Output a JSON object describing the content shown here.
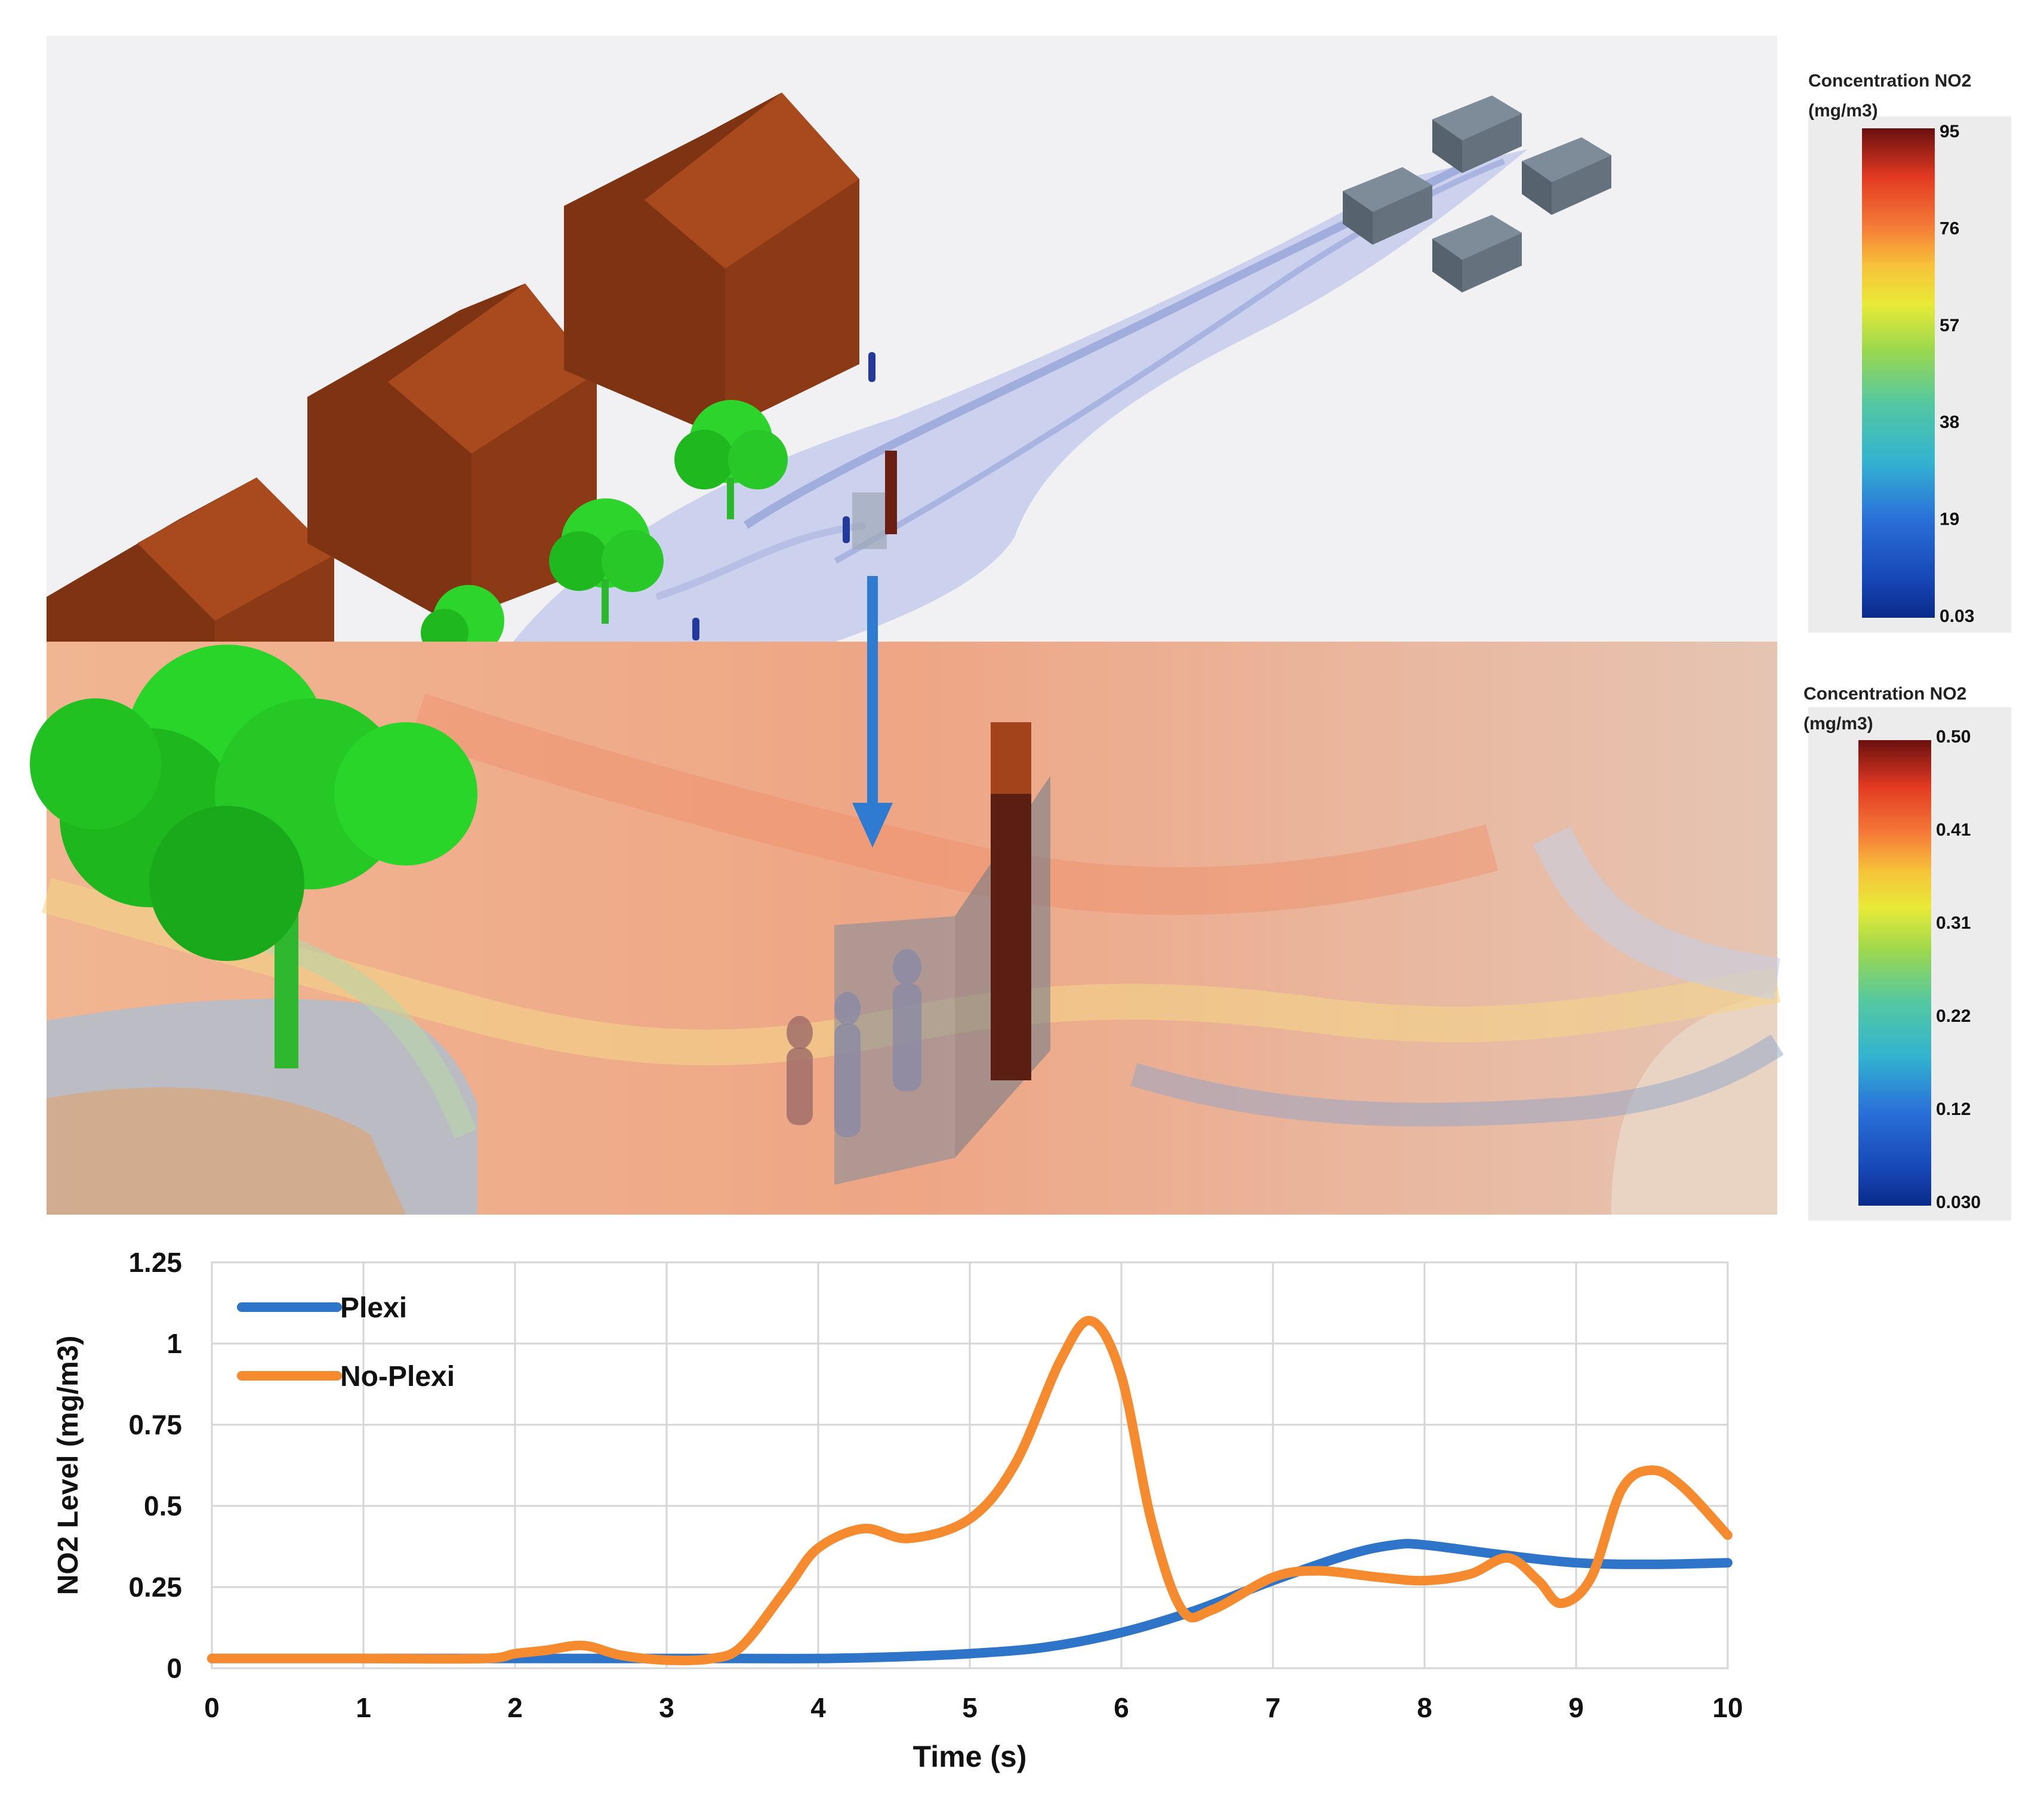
{
  "scenes": {
    "upper": {
      "colorbar": {
        "title_line1": "Concentration NO2",
        "title_line2": "(mg/m3)",
        "ticks": [
          "95",
          "76",
          "57",
          "38",
          "19",
          "0.03"
        ],
        "min": 0.03,
        "max": 95
      }
    },
    "lower": {
      "colorbar": {
        "title_line1": "Concentration NO2",
        "title_line2": "(mg/m3)",
        "ticks": [
          "0.50",
          "0.41",
          "0.31",
          "0.22",
          "0.12",
          "0.030"
        ],
        "min": 0.03,
        "max": 0.5
      }
    },
    "colors": {
      "house_wall": "#8a3a14",
      "house_roof": "#a34a1c",
      "tree": "#22cc22",
      "plume_low": "#b9c3e6",
      "plume_high": "#f0a070",
      "arrow": "#2e7bd1"
    },
    "icons": [
      "house-icon",
      "tree-icon",
      "vehicle-icon",
      "person-icon",
      "bus-shelter-icon",
      "down-arrow-icon"
    ]
  },
  "chart_data": {
    "type": "line",
    "title": "",
    "xlabel": "Time (s)",
    "ylabel": "NO2 Level (mg/m3)",
    "xlim": [
      0,
      10
    ],
    "ylim": [
      0,
      1.25
    ],
    "xticks": [
      "0",
      "1",
      "2",
      "3",
      "4",
      "5",
      "6",
      "7",
      "8",
      "9",
      "10"
    ],
    "yticks": [
      "0",
      "0.25",
      "0.5",
      "0.75",
      "1",
      "1.25"
    ],
    "grid": true,
    "legend": "top-left",
    "series": [
      {
        "name": "Plexi",
        "color": "#2e75c9",
        "x": [
          0,
          1,
          2,
          2.5,
          3,
          3.5,
          4,
          4.5,
          5,
          5.5,
          6,
          6.5,
          7,
          7.5,
          7.8,
          8,
          8.5,
          9,
          9.5,
          10
        ],
        "y": [
          0.03,
          0.03,
          0.03,
          0.03,
          0.03,
          0.03,
          0.03,
          0.035,
          0.045,
          0.065,
          0.11,
          0.18,
          0.27,
          0.35,
          0.38,
          0.38,
          0.35,
          0.325,
          0.32,
          0.325
        ]
      },
      {
        "name": "No-Plexi",
        "color": "#f58a2e",
        "x": [
          0,
          1,
          1.8,
          2,
          2.2,
          2.45,
          2.7,
          3,
          3.3,
          3.5,
          3.8,
          4,
          4.3,
          4.6,
          5,
          5.3,
          5.6,
          5.8,
          6,
          6.2,
          6.4,
          6.6,
          7,
          7.3,
          7.7,
          8,
          8.3,
          8.55,
          8.75,
          8.9,
          9.1,
          9.3,
          9.5,
          9.7,
          10
        ],
        "y": [
          0.03,
          0.03,
          0.03,
          0.045,
          0.055,
          0.07,
          0.04,
          0.025,
          0.03,
          0.07,
          0.25,
          0.37,
          0.43,
          0.4,
          0.46,
          0.63,
          0.95,
          1.07,
          0.9,
          0.45,
          0.18,
          0.18,
          0.28,
          0.3,
          0.28,
          0.27,
          0.29,
          0.34,
          0.27,
          0.2,
          0.28,
          0.55,
          0.61,
          0.56,
          0.41
        ]
      }
    ]
  }
}
